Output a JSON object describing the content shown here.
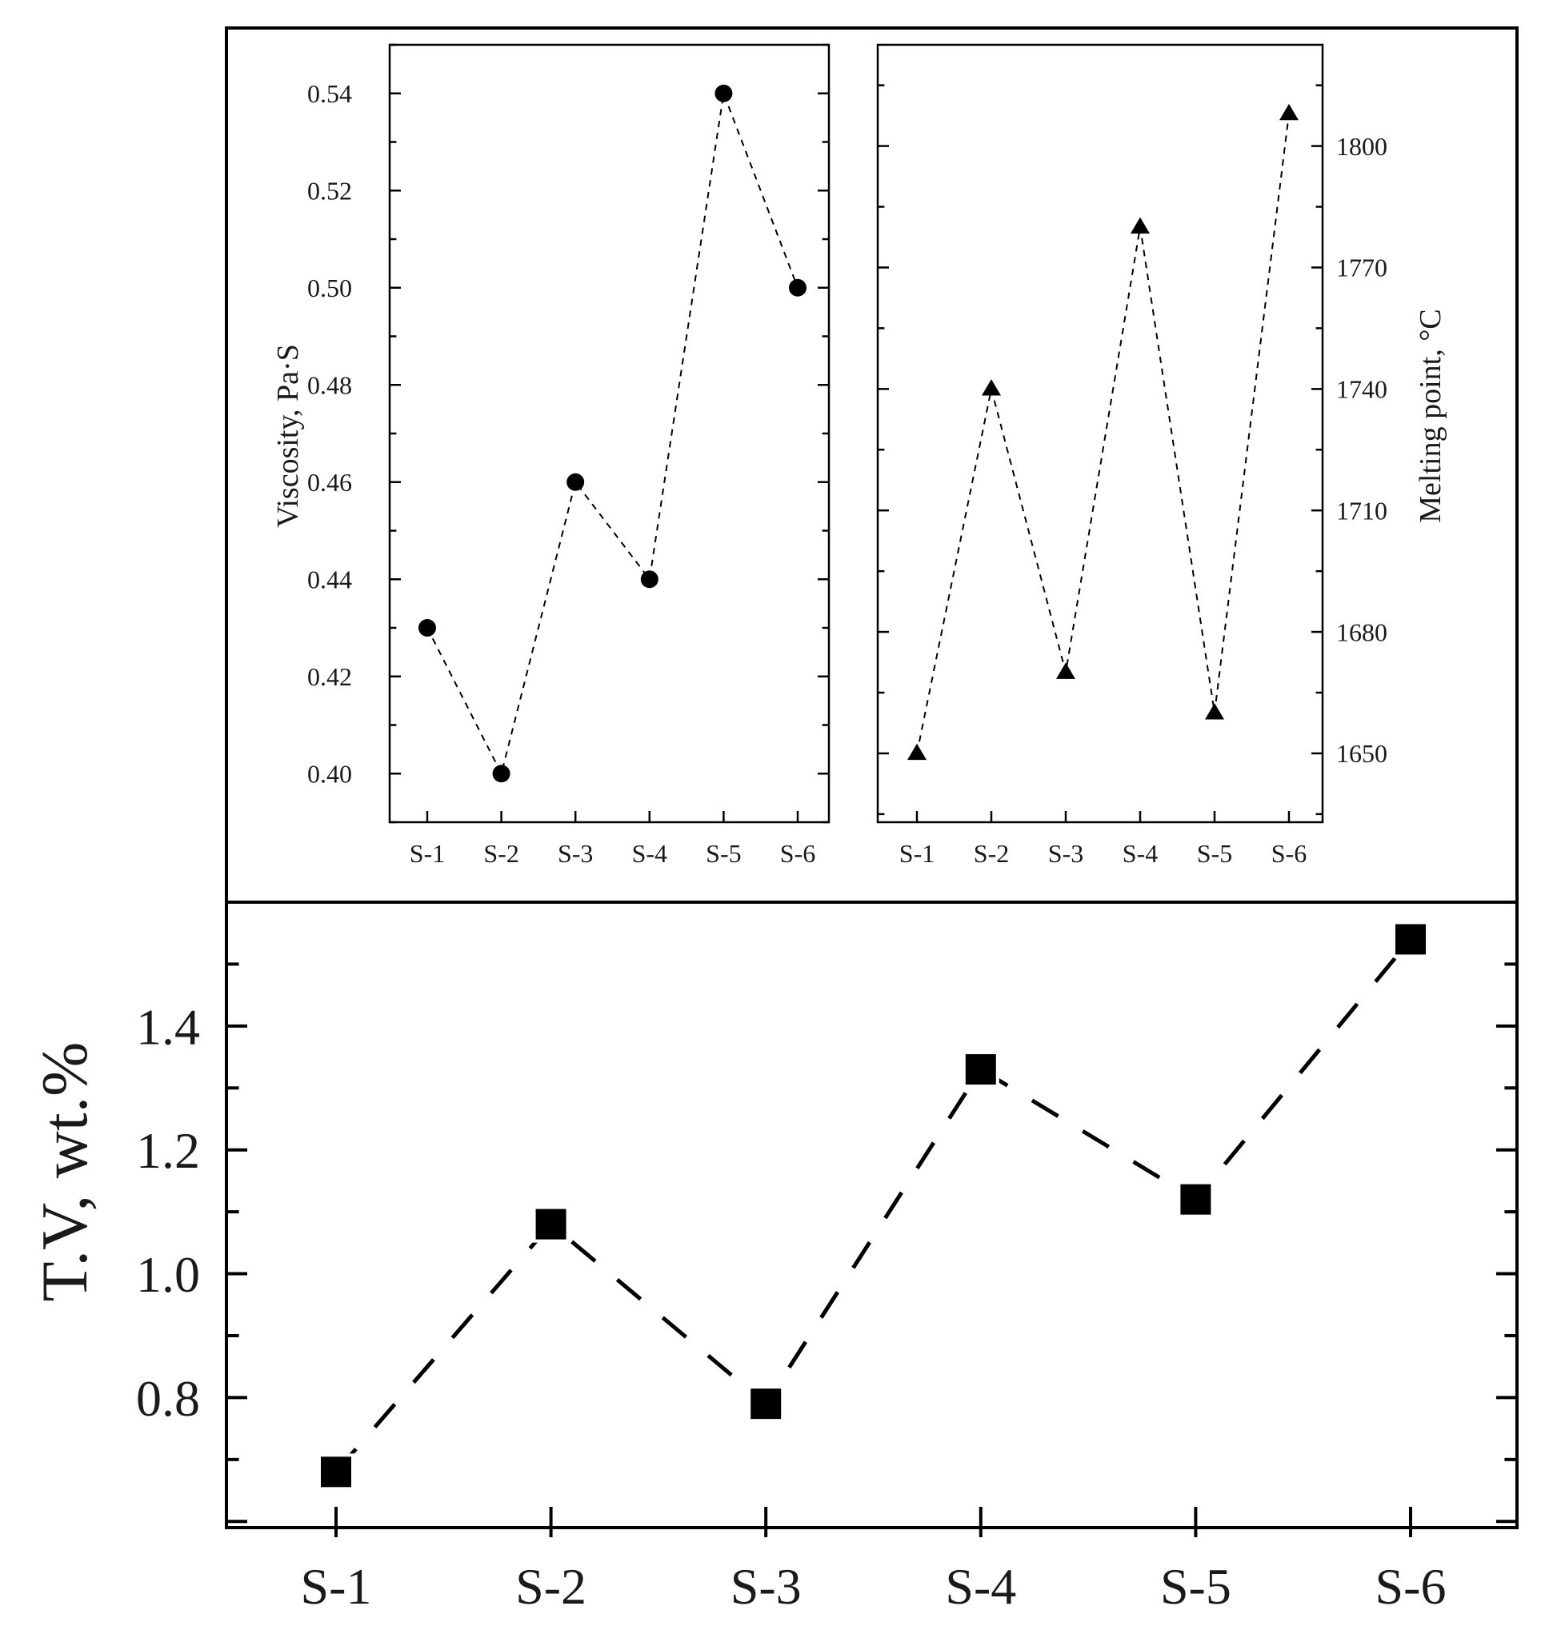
{
  "chart_data": [
    {
      "id": "tv",
      "type": "line",
      "marker": "square",
      "line_style": "dashed",
      "categories": [
        "S-1",
        "S-2",
        "S-3",
        "S-4",
        "S-5",
        "S-6"
      ],
      "values": [
        0.68,
        1.08,
        0.79,
        1.33,
        1.12,
        1.54
      ],
      "ylabel": "T.V, wt.%",
      "yticks": [
        "0.8",
        "1.0",
        "1.2",
        "1.4"
      ],
      "ylim": [
        0.59,
        1.6
      ]
    },
    {
      "id": "viscosity",
      "type": "line",
      "marker": "circle",
      "line_style": "dashed",
      "categories": [
        "S-1",
        "S-2",
        "S-3",
        "S-4",
        "S-5",
        "S-6"
      ],
      "values": [
        0.43,
        0.4,
        0.46,
        0.44,
        0.54,
        0.5
      ],
      "ylabel": "Viscosity, Pa·S",
      "yticks": [
        "0.40",
        "0.42",
        "0.44",
        "0.46",
        "0.48",
        "0.50",
        "0.52",
        "0.54"
      ],
      "ylim": [
        0.39,
        0.55
      ]
    },
    {
      "id": "melting",
      "type": "line",
      "marker": "triangle",
      "line_style": "dashed",
      "categories": [
        "S-1",
        "S-2",
        "S-3",
        "S-4",
        "S-5",
        "S-6"
      ],
      "values": [
        1650,
        1740,
        1670,
        1780,
        1660,
        1808
      ],
      "ylabel": "Melting point, °C",
      "yticks": [
        "1650",
        "1680",
        "1710",
        "1740",
        "1770",
        "1800"
      ],
      "ylim": [
        1633,
        1825
      ],
      "yaxis_side": "right"
    }
  ]
}
